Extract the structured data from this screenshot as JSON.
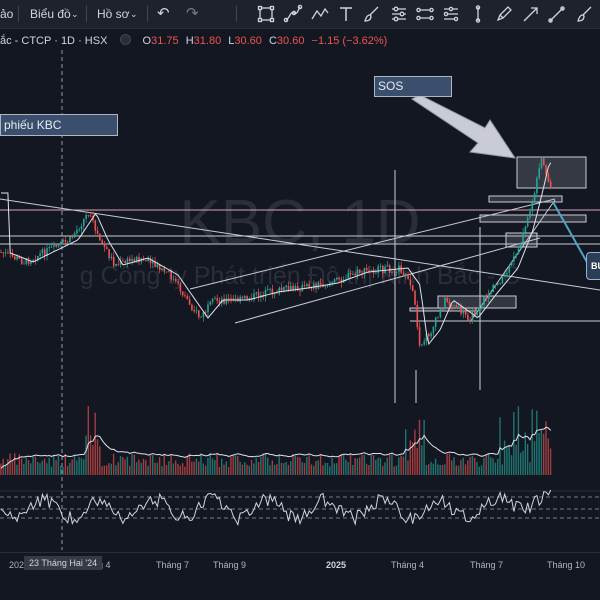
{
  "toolbar": {
    "partial_label": "ảo",
    "chart_menu": "Biểu đồ",
    "profile_menu": "Hồ sơ"
  },
  "symbol": {
    "name": "ắc - CTCP",
    "interval": "1D",
    "exchange": "HSX"
  },
  "ohlc": {
    "open_label": "O",
    "open": "31.75",
    "high_label": "H",
    "high": "31.80",
    "low_label": "L",
    "low": "30.60",
    "close_label": "C",
    "close": "30.60",
    "change": "−1.15 (−3.62%)"
  },
  "annotations": {
    "sos": "SOS",
    "stock_label": "phiếu KBC",
    "blue_tag": "BU"
  },
  "watermark": {
    "symbol": "KBC, 1D",
    "company": "g Công ty Phát triển Đô thị Kinh Bắc - C"
  },
  "time_axis": {
    "ticks": [
      "202",
      "g 4",
      "Tháng 7",
      "Tháng 9",
      "2025",
      "Tháng 4",
      "Tháng 7",
      "Tháng 10"
    ],
    "crosshair": "23 Tháng Hai '24"
  },
  "colors": {
    "background": "#131722",
    "up": "#26a69a",
    "down": "#ef5350",
    "info_up": "#ef5350"
  },
  "icons": {
    "drawing_tools": [
      "rectangle-icon",
      "path-icon",
      "polyline-icon",
      "text-icon",
      "brush-icon",
      "date-range-icon",
      "price-range-icon",
      "pin-icon",
      "pencil-icon",
      "arrow-icon"
    ]
  }
}
